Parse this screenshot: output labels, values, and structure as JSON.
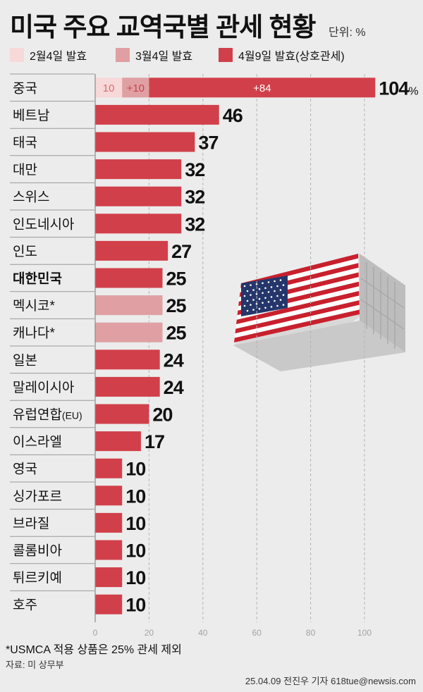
{
  "header": {
    "title": "미국 주요 교역국별 관세 현황",
    "unit": "단위: %"
  },
  "legend": [
    {
      "label": "2월4일 발효",
      "color": "#f7d9d9"
    },
    {
      "label": "3월4일 발효",
      "color": "#e0a0a3"
    },
    {
      "label": "4월9일 발효(상호관세)",
      "color": "#d1404a"
    }
  ],
  "colors": {
    "feb": "#f7d9d9",
    "mar": "#e0a0a3",
    "apr": "#d1404a",
    "usmca": "#e0a0a3",
    "grid": "#b5b5b5",
    "axis": "#8a8a8a"
  },
  "chart_data": {
    "type": "bar",
    "orientation": "horizontal",
    "stacked": true,
    "categories": [
      "중국",
      "베트남",
      "태국",
      "대만",
      "스위스",
      "인도네시아",
      "인도",
      "대한민국",
      "멕시코*",
      "캐나다*",
      "일본",
      "말레이시아",
      "유럽연합(EU)",
      "이스라엘",
      "영국",
      "싱가포르",
      "브라질",
      "콜롬비아",
      "튀르키예",
      "호주"
    ],
    "highlight": "대한민국",
    "usmca_categories": [
      "멕시코*",
      "캐나다*"
    ],
    "totals": [
      104,
      46,
      37,
      32,
      32,
      32,
      27,
      25,
      25,
      25,
      24,
      24,
      20,
      17,
      10,
      10,
      10,
      10,
      10,
      10
    ],
    "total_labels": [
      "104",
      "46",
      "37",
      "32",
      "32",
      "32",
      "27",
      "25",
      "25",
      "25",
      "24",
      "24",
      "20",
      "17",
      "10",
      "10",
      "10",
      "10",
      "10",
      "10"
    ],
    "total_unit": "%",
    "series": [
      {
        "name": "2월4일 발효",
        "values": [
          10,
          0,
          0,
          0,
          0,
          0,
          0,
          0,
          25,
          25,
          0,
          0,
          0,
          0,
          0,
          0,
          0,
          0,
          0,
          0
        ]
      },
      {
        "name": "3월4일 발효",
        "values": [
          10,
          0,
          0,
          0,
          0,
          0,
          0,
          0,
          0,
          0,
          0,
          0,
          0,
          0,
          0,
          0,
          0,
          0,
          0,
          0
        ]
      },
      {
        "name": "4월9일 발효(상호관세)",
        "values": [
          84,
          46,
          37,
          32,
          32,
          32,
          27,
          25,
          0,
          0,
          24,
          24,
          20,
          17,
          10,
          10,
          10,
          10,
          10,
          10
        ]
      }
    ],
    "segment_labels": [
      "10",
      "+10",
      "+84"
    ],
    "xlim": [
      0,
      110
    ],
    "xticks": [
      "0",
      "20",
      "40",
      "60",
      "80",
      "100"
    ],
    "xtick_values": [
      0,
      20,
      40,
      60,
      80,
      100
    ],
    "grid": "vertical dashed"
  },
  "illustration": {
    "name": "us-flag-shipping-container"
  },
  "footer": {
    "footnote": "*USMCA 적용 상품은 25% 관세 제외",
    "source": "자료: 미 상무부",
    "credit": "25.04.09 전진우 기자 618tue@newsis.com"
  }
}
